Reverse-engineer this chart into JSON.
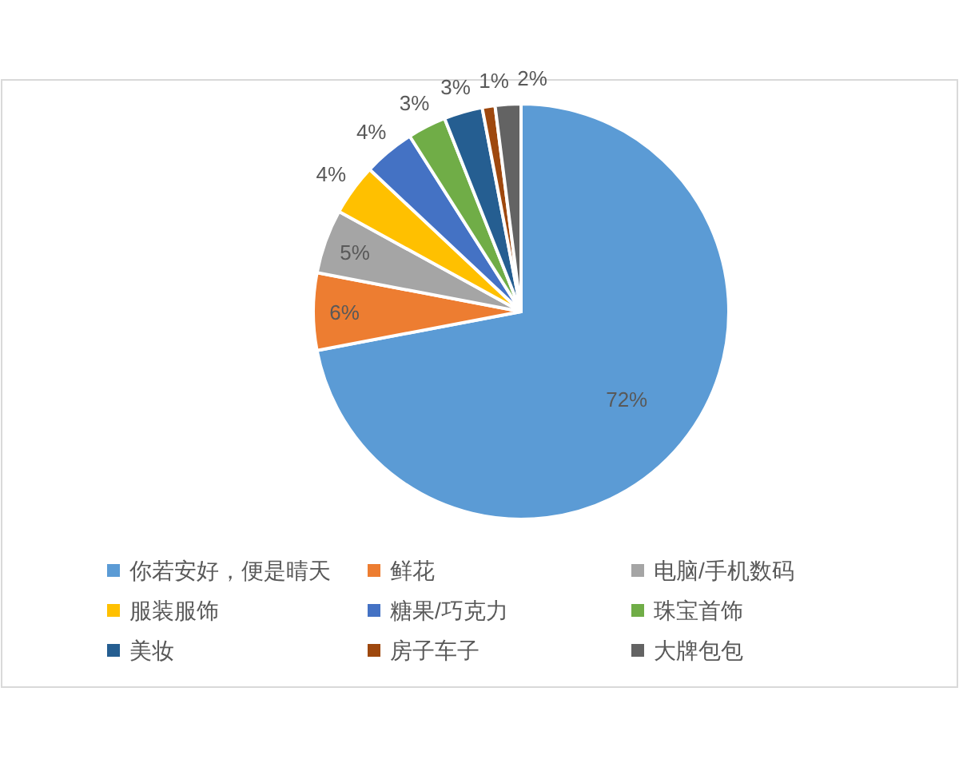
{
  "chart_data": {
    "type": "pie",
    "legend": "bottom",
    "categories": [
      "你若安好，便是晴天",
      "鲜花",
      "电脑/手机数码",
      "服装服饰",
      "糖果/巧克力",
      "珠宝首饰",
      "美妆",
      "房子车子",
      "大牌包包"
    ],
    "values": [
      72,
      6,
      5,
      4,
      4,
      3,
      3,
      1,
      2
    ],
    "value_labels": [
      "72%",
      "6%",
      "5%",
      "4%",
      "4%",
      "3%",
      "3%",
      "1%",
      "2%"
    ],
    "colors": [
      "#5b9bd5",
      "#ed7d31",
      "#a5a5a5",
      "#ffc000",
      "#4472c4",
      "#70ad47",
      "#255e91",
      "#9e480e",
      "#636363"
    ]
  }
}
